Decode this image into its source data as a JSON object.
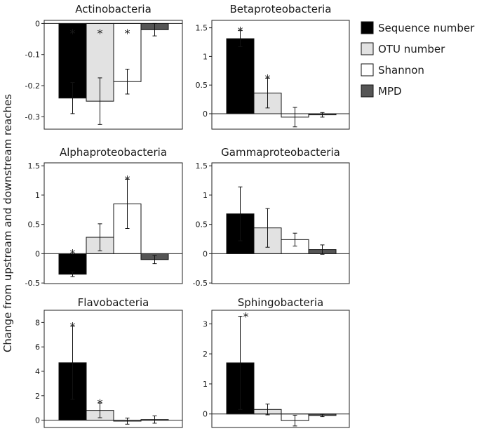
{
  "figure": {
    "ylabel": "Change from upstream and downstream reaches",
    "significance_marker": "*"
  },
  "legend": [
    {
      "name": "Sequence number",
      "color": "#000000"
    },
    {
      "name": "OTU number",
      "color": "#e2e2e2"
    },
    {
      "name": "Shannon",
      "color": "#ffffff"
    },
    {
      "name": "MPD",
      "color": "#555555"
    }
  ],
  "chart_data": [
    {
      "type": "bar",
      "title": "Actinobacteria",
      "series_names": [
        "Sequence number",
        "OTU number",
        "Shannon",
        "MPD"
      ],
      "values": [
        -0.24,
        -0.25,
        -0.187,
        -0.02
      ],
      "errors": [
        0.05,
        0.075,
        0.04,
        0.02
      ],
      "significant": [
        true,
        true,
        true,
        false
      ],
      "ylim": [
        -0.34,
        0.01
      ],
      "yticks": [
        0,
        -0.1,
        -0.2,
        -0.3
      ],
      "ytick_labels": [
        "0",
        "-0.1",
        "-0.2",
        "-0.3"
      ]
    },
    {
      "type": "bar",
      "title": "Betaproteobacteria",
      "series_names": [
        "Sequence number",
        "OTU number",
        "Shannon",
        "MPD"
      ],
      "values": [
        1.31,
        0.36,
        -0.06,
        -0.02
      ],
      "errors": [
        0.14,
        0.26,
        0.17,
        0.04
      ],
      "significant": [
        true,
        true,
        false,
        false
      ],
      "ylim": [
        -0.27,
        1.63
      ],
      "yticks": [
        1.5,
        1,
        0.5,
        0
      ],
      "ytick_labels": [
        "1.5",
        "1",
        "0.5",
        "0"
      ]
    },
    {
      "type": "bar",
      "title": "Alphaproteobacteria",
      "series_names": [
        "Sequence number",
        "OTU number",
        "Shannon",
        "MPD"
      ],
      "values": [
        -0.35,
        0.28,
        0.85,
        -0.1
      ],
      "errors": [
        0.04,
        0.23,
        0.42,
        0.07
      ],
      "significant": [
        true,
        false,
        true,
        false
      ],
      "ylim": [
        -0.51,
        1.55
      ],
      "yticks": [
        1.5,
        1,
        0.5,
        0,
        -0.5
      ],
      "ytick_labels": [
        "1.5",
        "1",
        "0.5",
        "0",
        "-0.5"
      ]
    },
    {
      "type": "bar",
      "title": "Gammaproteobacteria",
      "series_names": [
        "Sequence number",
        "OTU number",
        "Shannon",
        "MPD"
      ],
      "values": [
        0.68,
        0.44,
        0.24,
        0.07
      ],
      "errors": [
        0.46,
        0.33,
        0.11,
        0.08
      ],
      "significant": [
        false,
        false,
        false,
        false
      ],
      "ylim": [
        -0.51,
        1.55
      ],
      "yticks": [
        1.5,
        1,
        0.5,
        0,
        -0.5
      ],
      "ytick_labels": [
        "1.5",
        "1",
        "0.5",
        "0",
        "-0.5"
      ]
    },
    {
      "type": "bar",
      "title": "Flavobacteria",
      "series_names": [
        "Sequence number",
        "OTU number",
        "Shannon",
        "MPD"
      ],
      "values": [
        4.7,
        0.8,
        -0.08,
        0.05
      ],
      "errors": [
        3.0,
        0.6,
        0.25,
        0.3
      ],
      "significant": [
        true,
        true,
        false,
        false
      ],
      "ylim": [
        -0.6,
        9.0
      ],
      "yticks": [
        8,
        6,
        4,
        2,
        0
      ],
      "ytick_labels": [
        "8",
        "6",
        "4",
        "2",
        "0"
      ]
    },
    {
      "type": "bar",
      "title": "Sphingobacteria",
      "series_names": [
        "Sequence number",
        "OTU number",
        "Shannon",
        "MPD"
      ],
      "values": [
        1.7,
        0.15,
        -0.22,
        -0.05
      ],
      "errors": [
        1.55,
        0.18,
        0.18,
        0.04
      ],
      "significant": [
        true,
        false,
        false,
        false
      ],
      "ylim": [
        -0.45,
        3.45
      ],
      "yticks": [
        3,
        2,
        1,
        0
      ],
      "ytick_labels": [
        "3",
        "2",
        "1",
        "0"
      ]
    }
  ]
}
